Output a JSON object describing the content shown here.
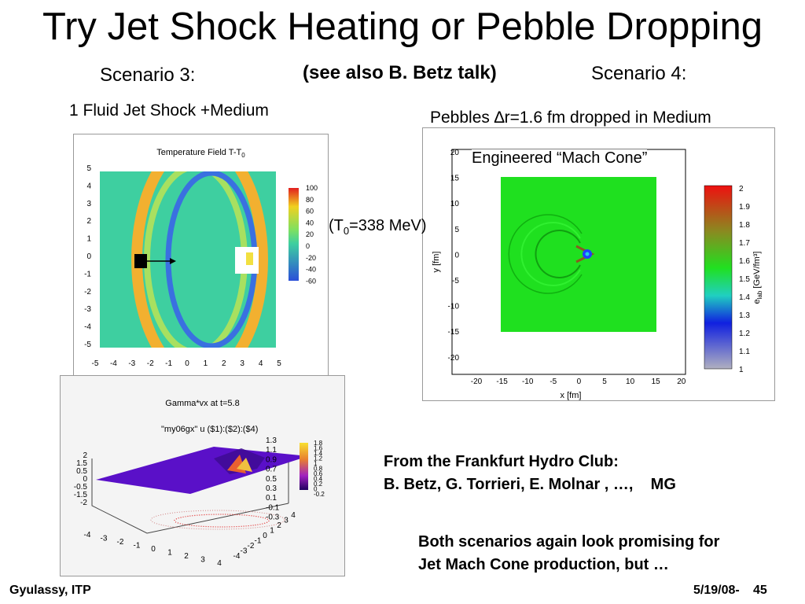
{
  "slide": {
    "title": "Try Jet Shock Heating or Pebble Dropping",
    "scenario3": "Scenario 3:",
    "see_also": "(see also B. Betz talk)",
    "scenario4": "Scenario 4:",
    "caption_left": "1 Fluid Jet Shock +Medium",
    "caption_right": "Pebbles ∆r=1.6 fm dropped in Medium",
    "engineered": "Engineered “Mach Cone”",
    "t0_prefix": "(T",
    "t0_sub": "0",
    "t0_suffix": "=338 MeV)",
    "credit_line1": "From the Frankfurt Hydro Club:",
    "credit_line2": "B. Betz, G. Torrieri, E. Molnar , …,    MG",
    "conclusion_line1": "Both scenarios again look promising for",
    "conclusion_line2": "Jet Mach Cone production, but …",
    "footer_left": "Gyulassy, ITP",
    "footer_date": "5/19/08-",
    "footer_page": "45"
  },
  "chart_data": [
    {
      "type": "heatmap",
      "title": "Temperature Field T-T₀",
      "title_main": "Temperature Field T-T",
      "title_sub": "0",
      "xlim": [
        -5,
        5
      ],
      "ylim": [
        -5,
        5
      ],
      "x_ticks": [
        "-5",
        "-4",
        "-3",
        "-2",
        "-1",
        "0",
        "1",
        "2",
        "3",
        "4",
        "5"
      ],
      "y_ticks": [
        "5",
        "4",
        "3",
        "2",
        "1",
        "0",
        "-1",
        "-2",
        "-3",
        "-4",
        "-5"
      ],
      "colorbar_ticks": [
        "100",
        "80",
        "60",
        "40",
        "20",
        "0",
        "-20",
        "-40",
        "-60"
      ],
      "colors": {
        "background": "#3ecfa0",
        "hot": "#e21f1f",
        "cold": "#2b4fd8"
      }
    },
    {
      "type": "surface",
      "title": "Gamma*vx at t=5.8",
      "legend": "\"my06gx\" u ($1):($2):($4)",
      "z_ticks": [
        "2",
        "1.5",
        "0.5",
        "0",
        "-0.5",
        "-1.5",
        "-2"
      ],
      "inner_ticks": [
        "1.3",
        "1.1",
        "0.9",
        "0.7",
        "0.5",
        "0.3",
        "0.1",
        "-0.1",
        "-0.3"
      ],
      "colorbar_ticks": [
        "1.8",
        "1.6",
        "1.4",
        "1.2",
        "1",
        "0.8",
        "0.6",
        "0.4",
        "0.2",
        "0",
        "-0.2"
      ],
      "x_ticks": [
        "-4",
        "-3",
        "-2",
        "-1",
        "0",
        "1",
        "2",
        "3",
        "4"
      ],
      "y_ticks": [
        "4",
        "3",
        "2",
        "1",
        "0",
        "-1",
        "-2",
        "-3",
        "-4"
      ],
      "colors": {
        "surface": "#5a10c8",
        "wake": "#e8a030"
      }
    },
    {
      "type": "heatmap",
      "xlabel": "x [fm]",
      "ylabel": "y [fm]",
      "xlim": [
        -20,
        20
      ],
      "ylim": [
        -20,
        20
      ],
      "x_ticks": [
        "-20",
        "-15",
        "-10",
        "-5",
        "0",
        "5",
        "10",
        "15",
        "20"
      ],
      "y_ticks": [
        "20",
        "15",
        "10",
        "5",
        "0",
        "-5",
        "-10",
        "-15",
        "-20"
      ],
      "colorbar_ticks": [
        "2",
        "1.9",
        "1.8",
        "1.7",
        "1.6",
        "1.5",
        "1.4",
        "1.3",
        "1.2",
        "1.1",
        "1"
      ],
      "colorbar_label": "e",
      "colorbar_label_sub": "lab",
      "colorbar_label_unit": " [GeV/fm³]",
      "colors": {
        "medium": "#1fe01f"
      }
    }
  ]
}
